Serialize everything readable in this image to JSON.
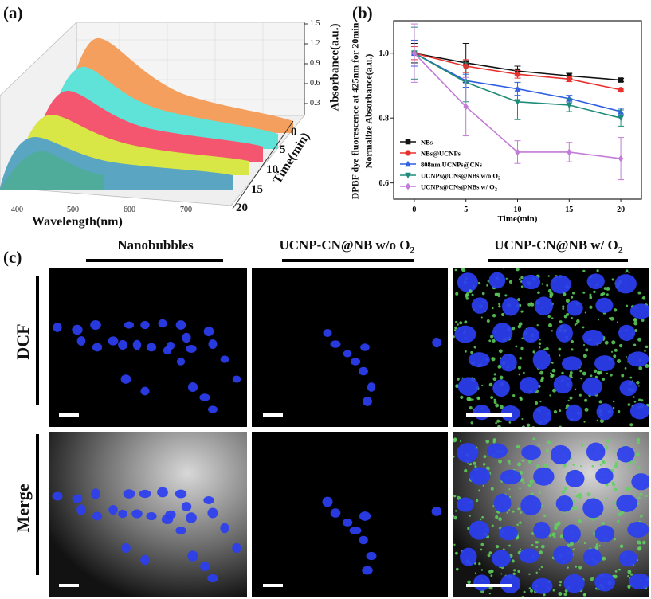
{
  "panel_a": {
    "label": "(a)",
    "xlabel": "Wavelength(nm)",
    "xticks": [
      "400",
      "500",
      "600",
      "700"
    ],
    "depth_label": "Time(min)",
    "depth_ticks": [
      "0",
      "5",
      "10",
      "15",
      "20"
    ],
    "zlabel": "Absorbance(a.u.)",
    "zticks": [
      "1.5",
      "1.2",
      "0.9",
      "0.6",
      "0.3"
    ]
  },
  "panel_b": {
    "label": "(b)",
    "chart_data": {
      "type": "line",
      "xlabel": "Time(min)",
      "ylabel": "DPBF dye fluorescence at 425nm for 20min",
      "ylabel2": "Normalize Absorbance(a.u.)",
      "x": [
        0,
        5,
        10,
        15,
        20
      ],
      "xticks": [
        "0",
        "5",
        "10",
        "15",
        "20"
      ],
      "ylim": [
        0.55,
        1.1
      ],
      "yticks": [
        "0.6",
        "0.8",
        "1.0"
      ],
      "legend_position": "left",
      "series": [
        {
          "name": "NBs",
          "color": "#111111",
          "marker": "square",
          "values": [
            1.0,
            0.97,
            0.945,
            0.93,
            0.917
          ],
          "err": [
            0.03,
            0.06,
            0.015,
            0.008,
            0.005
          ]
        },
        {
          "name": "NBs@UCNPs",
          "color": "#e8312f",
          "marker": "circle",
          "values": [
            1.0,
            0.96,
            0.935,
            0.92,
            0.887
          ],
          "err": [
            0.02,
            0.02,
            0.012,
            0.008,
            0.005
          ]
        },
        {
          "name": "808nm UCNPs@CNs",
          "color": "#2f5fe0",
          "marker": "triangle-up",
          "values": [
            1.0,
            0.915,
            0.89,
            0.86,
            0.82
          ],
          "err": [
            0.04,
            0.02,
            0.02,
            0.01,
            0.01
          ]
        },
        {
          "name": "UCNPs@CNs@NBs w/o O",
          "sub": "2",
          "color": "#1f8c7a",
          "marker": "triangle-down",
          "values": [
            1.0,
            0.91,
            0.85,
            0.84,
            0.8
          ],
          "err": [
            0.08,
            0.06,
            0.055,
            0.02,
            0.025
          ]
        },
        {
          "name": "UCNPs@CNs@NBs w/ O",
          "sub": "2",
          "color": "#c27bd6",
          "marker": "diamond",
          "values": [
            1.0,
            0.835,
            0.695,
            0.695,
            0.675
          ],
          "err": [
            0.09,
            0.09,
            0.035,
            0.03,
            0.065
          ]
        }
      ]
    }
  },
  "panel_c": {
    "label": "(c)",
    "columns": [
      {
        "title": "Nanobubbles",
        "sub": ""
      },
      {
        "title": "UCNP-CN@NB w/o O",
        "sub": "2"
      },
      {
        "title": "UCNP-CN@NB w/ O",
        "sub": "2"
      }
    ],
    "rows": [
      "DCF",
      "Merge"
    ]
  }
}
